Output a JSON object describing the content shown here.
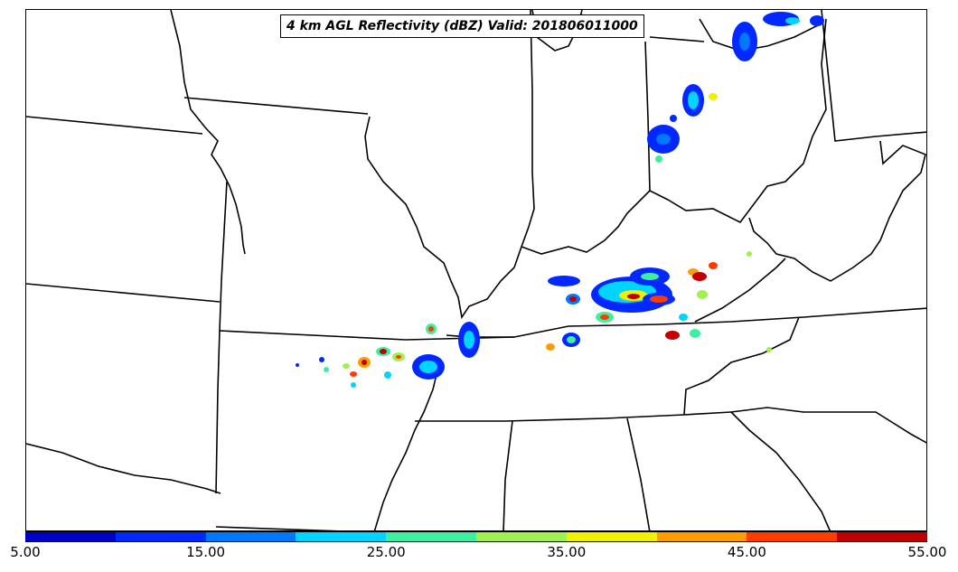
{
  "title": "4 km AGL Reflectivity (dBZ) Valid: 201806011000",
  "colorbar": {
    "colors": [
      "#0000c8",
      "#0028ff",
      "#0078ff",
      "#00d4ff",
      "#3cf0a0",
      "#a0f050",
      "#f0f000",
      "#ff9c00",
      "#ff3c00",
      "#c00000"
    ],
    "tick_labels": [
      "5.00",
      "15.00",
      "25.00",
      "35.00",
      "45.00",
      "55.00"
    ],
    "min": 5,
    "max": 55,
    "unit": "dBZ"
  }
}
